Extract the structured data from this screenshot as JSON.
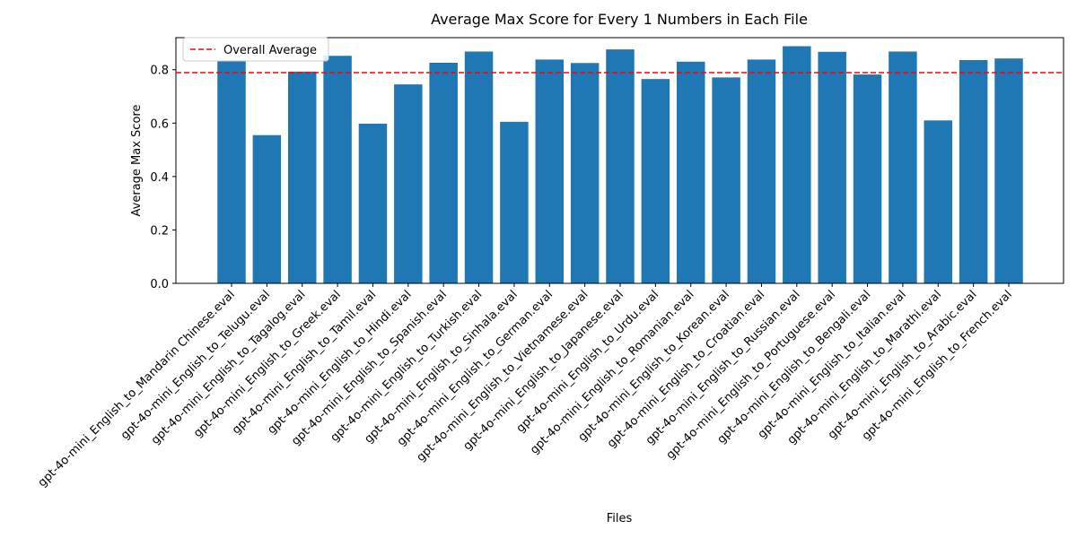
{
  "chart_data": {
    "type": "bar",
    "title": "Average Max Score for Every 1 Numbers in Each File",
    "xlabel": "Files",
    "ylabel": "Average Max Score",
    "ylim": [
      0,
      0.92
    ],
    "yticks": [
      0.0,
      0.2,
      0.4,
      0.6,
      0.8
    ],
    "ytick_labels": [
      "0.0",
      "0.2",
      "0.4",
      "0.6",
      "0.8"
    ],
    "bar_color": "#1f77b4",
    "grid": false,
    "legend_position": "top-left",
    "categories": [
      "gpt-4o-mini_English_to_Mandarin Chinese.eval",
      "gpt-4o-mini_English_to_Telugu.eval",
      "gpt-4o-mini_English_to_Tagalog.eval",
      "gpt-4o-mini_English_to_Greek.eval",
      "gpt-4o-mini_English_to_Tamil.eval",
      "gpt-4o-mini_English_to_Hindi.eval",
      "gpt-4o-mini_English_to_Spanish.eval",
      "gpt-4o-mini_English_to_Turkish.eval",
      "gpt-4o-mini_English_to_Sinhala.eval",
      "gpt-4o-mini_English_to_German.eval",
      "gpt-4o-mini_English_to_Vietnamese.eval",
      "gpt-4o-mini_English_to_Japanese.eval",
      "gpt-4o-mini_English_to_Urdu.eval",
      "gpt-4o-mini_English_to_Romanian.eval",
      "gpt-4o-mini_English_to_Korean.eval",
      "gpt-4o-mini_English_to_Croatian.eval",
      "gpt-4o-mini_English_to_Russian.eval",
      "gpt-4o-mini_English_to_Portuguese.eval",
      "gpt-4o-mini_English_to_Bengali.eval",
      "gpt-4o-mini_English_to_Italian.eval",
      "gpt-4o-mini_English_to_Marathi.eval",
      "gpt-4o-mini_English_to_Arabic.eval",
      "gpt-4o-mini_English_to_French.eval"
    ],
    "values": [
      0.835,
      0.555,
      0.793,
      0.852,
      0.598,
      0.745,
      0.826,
      0.868,
      0.605,
      0.838,
      0.825,
      0.876,
      0.765,
      0.83,
      0.771,
      0.838,
      0.888,
      0.867,
      0.782,
      0.868,
      0.61,
      0.836,
      0.842
    ],
    "reference_line": {
      "label": "Overall Average",
      "value": 0.789,
      "color": "#ff0000",
      "style": "dashed"
    }
  }
}
